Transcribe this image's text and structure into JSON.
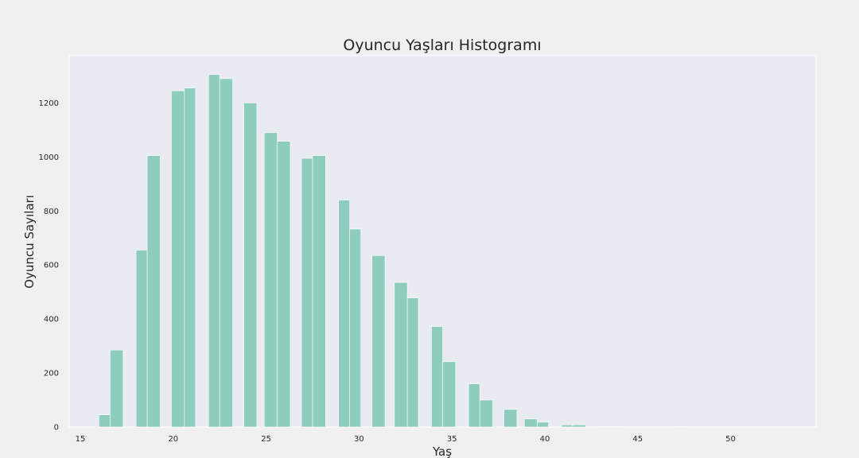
{
  "chart_data": {
    "type": "bar",
    "title": "Oyuncu Yaşları Histogramı",
    "xlabel": "Yaş",
    "ylabel": "Oyuncu Sayıları",
    "xlim": [
      14.4,
      54.6
    ],
    "ylim": [
      0,
      1375
    ],
    "xticks": [
      15,
      20,
      25,
      30,
      35,
      40,
      45,
      50
    ],
    "yticks": [
      0,
      200,
      400,
      600,
      800,
      1000,
      1200
    ],
    "grid": false,
    "bar_color": "#8ecdbd",
    "plot_background": "#eaeaf2",
    "bins": [
      {
        "x0": 16.0,
        "x1": 16.6,
        "value": 45
      },
      {
        "x0": 16.6,
        "x1": 17.3,
        "value": 285
      },
      {
        "x0": 18.0,
        "x1": 18.6,
        "value": 655
      },
      {
        "x0": 18.6,
        "x1": 19.3,
        "value": 1005
      },
      {
        "x0": 19.9,
        "x1": 20.6,
        "value": 1245
      },
      {
        "x0": 20.6,
        "x1": 21.2,
        "value": 1255
      },
      {
        "x0": 21.9,
        "x1": 22.5,
        "value": 1305
      },
      {
        "x0": 22.5,
        "x1": 23.2,
        "value": 1290
      },
      {
        "x0": 23.8,
        "x1": 24.5,
        "value": 1200
      },
      {
        "x0": 24.9,
        "x1": 25.6,
        "value": 1090
      },
      {
        "x0": 25.6,
        "x1": 26.3,
        "value": 1058
      },
      {
        "x0": 26.9,
        "x1": 27.5,
        "value": 995
      },
      {
        "x0": 27.5,
        "x1": 28.2,
        "value": 1005
      },
      {
        "x0": 28.9,
        "x1": 29.5,
        "value": 840
      },
      {
        "x0": 29.5,
        "x1": 30.1,
        "value": 733
      },
      {
        "x0": 30.7,
        "x1": 31.4,
        "value": 635
      },
      {
        "x0": 31.9,
        "x1": 32.6,
        "value": 535
      },
      {
        "x0": 32.6,
        "x1": 33.2,
        "value": 478
      },
      {
        "x0": 33.9,
        "x1": 34.5,
        "value": 372
      },
      {
        "x0": 34.5,
        "x1": 35.2,
        "value": 242
      },
      {
        "x0": 35.9,
        "x1": 36.5,
        "value": 160
      },
      {
        "x0": 36.5,
        "x1": 37.2,
        "value": 100
      },
      {
        "x0": 37.8,
        "x1": 38.5,
        "value": 65
      },
      {
        "x0": 38.9,
        "x1": 39.6,
        "value": 30
      },
      {
        "x0": 39.6,
        "x1": 40.2,
        "value": 18
      },
      {
        "x0": 40.9,
        "x1": 41.5,
        "value": 8
      },
      {
        "x0": 41.5,
        "x1": 42.2,
        "value": 8
      },
      {
        "x0": 42.9,
        "x1": 43.5,
        "value": 2
      },
      {
        "x0": 43.5,
        "x1": 44.2,
        "value": 1
      },
      {
        "x0": 46.9,
        "x1": 47.5,
        "value": 1
      }
    ]
  }
}
